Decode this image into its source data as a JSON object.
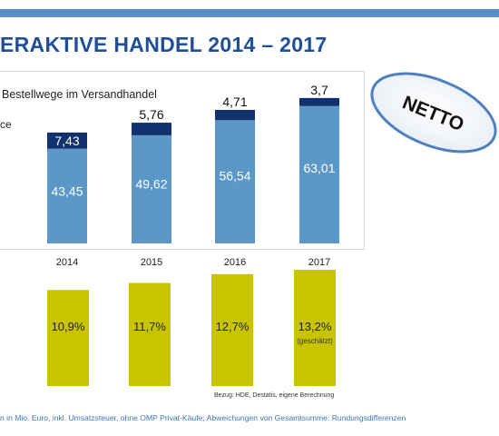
{
  "header": {
    "title": "ERAKTIVE HANDEL 2014 – 2017",
    "subtitle": "Bestellwege im Versandhandel",
    "legend_fragment": "ce"
  },
  "badge": {
    "label": "NETTO"
  },
  "chart_data": [
    {
      "type": "bar",
      "stacked": true,
      "categories": [
        "2014",
        "2015",
        "2016",
        "2017"
      ],
      "series": [
        {
          "values": [
            43.45,
            49.62,
            56.54,
            63.01
          ],
          "labels": [
            "43,45",
            "49,62",
            "56,54",
            "63,01"
          ]
        },
        {
          "values": [
            7.43,
            5.76,
            4.71,
            3.7
          ],
          "labels": [
            "7,43",
            "5,76",
            "4,71",
            "3,7"
          ]
        }
      ],
      "grid": false
    },
    {
      "type": "bar",
      "categories": [
        "2014",
        "2015",
        "2016",
        "2017"
      ],
      "values": [
        10.9,
        11.7,
        12.7,
        13.2
      ],
      "labels": [
        "10,9%",
        "11,7%",
        "12,7%",
        "13,2%"
      ],
      "sublabels": [
        "",
        "",
        "",
        "(geschätzt)"
      ],
      "unit": "%"
    }
  ],
  "colors": {
    "bar_light": "#5b97c7",
    "bar_dark": "#10306e",
    "bar_share": "#c9c400",
    "title": "#1f4e9a",
    "top_bar": "#5b8ec3",
    "footnote": "#3a77b5"
  },
  "source": "Bezug: HDE, Destatis, eigene Berechnung",
  "footnote": "n in Mio. Euro, inkl. Umsatzsteuer, ohne OMP Privat-Käufe; Abweichungen von Gesamtsumme: Rundungsdifferenzen"
}
